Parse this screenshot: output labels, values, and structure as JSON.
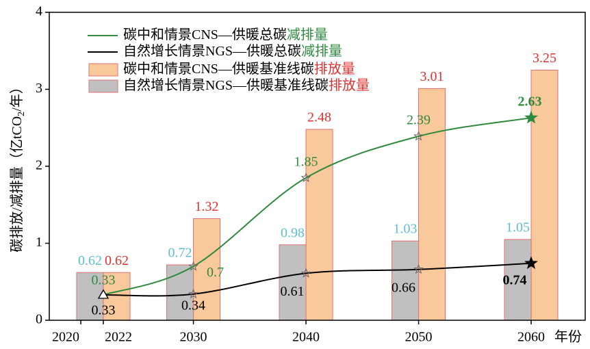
{
  "chart_data": {
    "type": "bar-line",
    "ylabel": [
      "碳排放/减排量（亿tCO",
      "2",
      "/年）"
    ],
    "xlabel": "年份",
    "categories": [
      2022,
      2030,
      2040,
      2050,
      2060
    ],
    "xlim": [
      2017.2,
      2064.8
    ],
    "xticks": [
      2020,
      2022,
      2030,
      2040,
      2050,
      2060
    ],
    "ylim": [
      0,
      4
    ],
    "yticks": [
      0,
      1,
      2,
      3,
      4
    ],
    "series": [
      {
        "name": [
          "碳中和情景CNS—供暖总碳",
          "减排量"
        ],
        "name_colors": [
          "#000000",
          "#2e8b3e"
        ],
        "kind": "line",
        "color": "#2e8b3e",
        "label_color": "#2e8b3e",
        "values": [
          0.33,
          0.7,
          1.85,
          2.39,
          2.63
        ]
      },
      {
        "name": [
          "自然增长情景NGS—供暖总碳",
          "减排量"
        ],
        "name_colors": [
          "#000000",
          "#2e8b3e"
        ],
        "kind": "line",
        "color": "#000000",
        "label_color": "#000000",
        "values": [
          0.33,
          0.34,
          0.61,
          0.66,
          0.74
        ]
      },
      {
        "name": [
          "碳中和情景CNS—供暖基准线碳",
          "排放量"
        ],
        "name_colors": [
          "#000000",
          "#e03030"
        ],
        "kind": "bar",
        "side": "right",
        "color": "#f9c89b",
        "label_color": "#e03030",
        "values": [
          0.62,
          1.32,
          2.48,
          3.01,
          3.25
        ]
      },
      {
        "name": [
          "自然增长情景NGS—供暖基准线碳",
          "排放量"
        ],
        "name_colors": [
          "#000000",
          "#e03030"
        ],
        "kind": "bar",
        "side": "left",
        "color": "#c0c0c0",
        "label_color": "#5bbfcf",
        "values": [
          0.62,
          0.72,
          0.98,
          1.03,
          1.05
        ]
      }
    ]
  }
}
